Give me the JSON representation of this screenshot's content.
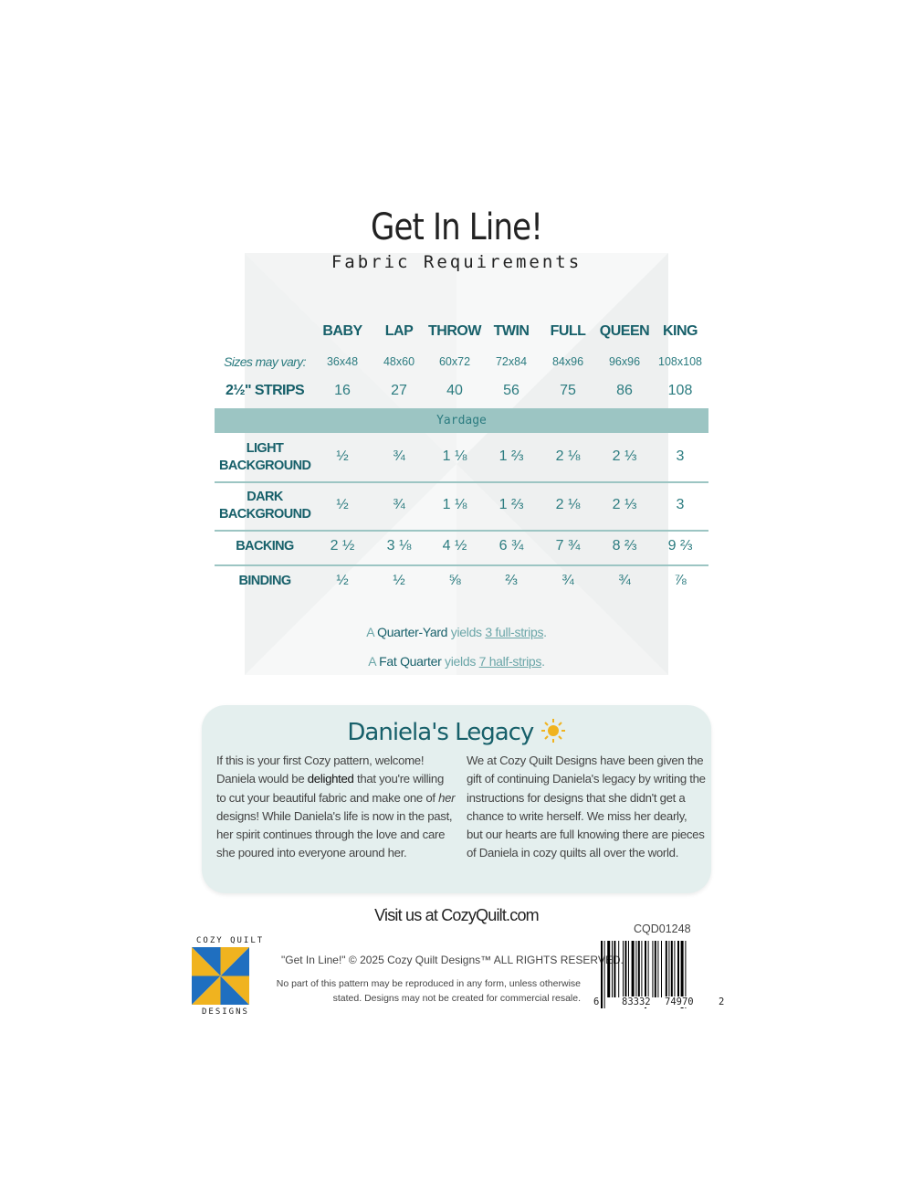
{
  "header": {
    "title": "Get In Line!",
    "subtitle": "Fabric Requirements"
  },
  "table": {
    "columns": [
      "BABY",
      "LAP",
      "THROW",
      "TWIN",
      "FULL",
      "QUEEN",
      "KING"
    ],
    "sizes_label": "Sizes may vary:",
    "sizes": [
      "36x48",
      "48x60",
      "60x72",
      "72x84",
      "84x96",
      "96x96",
      "108x108"
    ],
    "strips_label": "2½\" STRIPS",
    "strips": [
      "16",
      "27",
      "40",
      "56",
      "75",
      "86",
      "108"
    ],
    "section_label": "Yardage",
    "rows": [
      {
        "label_line1": "LIGHT",
        "label_line2": "BACKGROUND",
        "values": [
          "½",
          "¾",
          "1 ⅛",
          "1 ⅔",
          "2 ⅛",
          "2 ⅓",
          "3"
        ]
      },
      {
        "label_line1": "DARK",
        "label_line2": "BACKGROUND",
        "values": [
          "½",
          "¾",
          "1 ⅛",
          "1 ⅔",
          "2 ⅛",
          "2 ⅓",
          "3"
        ]
      },
      {
        "label_line1": "BACKING",
        "label_line2": "",
        "values": [
          "2 ½",
          "3 ⅛",
          "4 ½",
          "6 ¾",
          "7 ¾",
          "8 ⅔",
          "9 ⅔"
        ]
      },
      {
        "label_line1": "BINDING",
        "label_line2": "",
        "values": [
          "½",
          "½",
          "⅝",
          "⅔",
          "¾",
          "¾",
          "⅞"
        ]
      }
    ]
  },
  "notes": [
    {
      "a": "A ",
      "b": "Quarter-Yard",
      "c": " yields ",
      "d": "3 full-strips",
      "e": "."
    },
    {
      "a": "A ",
      "b": "Fat Quarter",
      "c": " yields ",
      "d": "7 half-strips",
      "e": "."
    }
  ],
  "legacy": {
    "title": "Daniela's Legacy",
    "left_1": "If this is your first Cozy pattern, welcome! Daniela would be ",
    "left_bold": "delighted",
    "left_2": " that you're willing to cut your beautiful fabric and make one of ",
    "left_italic": "her",
    "left_3": " designs! While Daniela's life is now in the past, her spirit continues through the love and care she poured into everyone around her.",
    "right": "We at Cozy Quilt Designs have been given the gift of continuing Daniela's legacy by writing the instructions for designs that she didn't get a chance to write herself. We miss her dearly, but our hearts are full knowing there are pieces of Daniela in cozy quilts all over the world."
  },
  "footer": {
    "visit": "Visit us at CozyQuilt.com",
    "sku": "CQD01248",
    "barcode_digits": [
      "6",
      "83332",
      "74970",
      "2"
    ],
    "copyright": "\"Get In Line!\" © 2025 Cozy Quilt Designs™ ALL RIGHTS RESERVED.",
    "legal": "No part of this pattern may be reproduced in any form, unless otherwise stated. Designs may not be created for commercial resale.",
    "logo_top": "COZY QUILT",
    "logo_bottom": "DESIGNS"
  },
  "colors": {
    "teal_dark": "#17606a",
    "teal": "#2c7c80",
    "band": "#9cc5c3",
    "legacy_bg": "#e4efee",
    "logo_blue": "#1f6fc0",
    "logo_yellow": "#f0b31f"
  }
}
